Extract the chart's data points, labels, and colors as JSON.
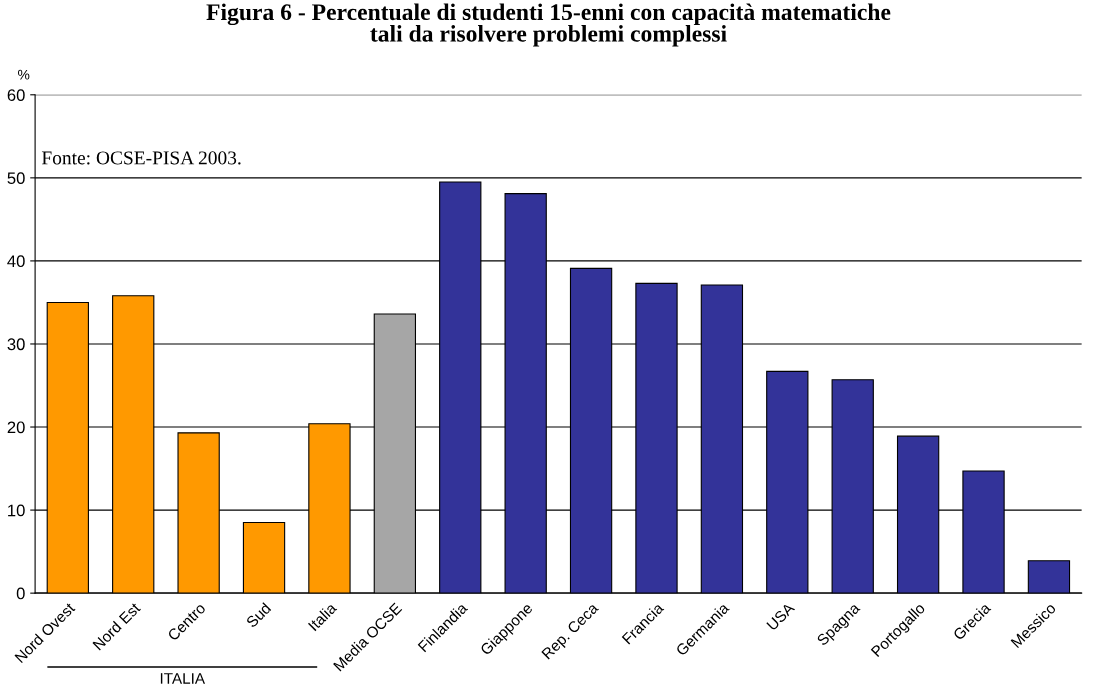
{
  "chart_data": {
    "type": "bar",
    "title": "Figura 6 - Percentuale di studenti 15-enni con capacità matematiche\ntali da risolvere problemi complessi",
    "ylabel": "%",
    "categories": [
      "Nord Ovest",
      "Nord Est",
      "Centro",
      "Sud",
      "Italia",
      "Media OCSE",
      "Finlandia",
      "Giappone",
      "Rep. Ceca",
      "Francia",
      "Germania",
      "USA",
      "Spagna",
      "Portogallo",
      "Grecia",
      "Messico"
    ],
    "values": [
      35.0,
      35.8,
      19.3,
      8.5,
      20.4,
      33.6,
      49.5,
      48.1,
      39.1,
      37.3,
      37.1,
      26.7,
      25.7,
      18.9,
      14.7,
      3.9
    ],
    "colors": [
      "#ff9900",
      "#ff9900",
      "#ff9900",
      "#ff9900",
      "#ff9900",
      "#a6a6a6",
      "#333399",
      "#333399",
      "#333399",
      "#333399",
      "#333399",
      "#333399",
      "#333399",
      "#333399",
      "#333399",
      "#333399"
    ],
    "ylim": [
      0,
      60
    ],
    "yticks": [
      0,
      10,
      20,
      30,
      40,
      50,
      60
    ],
    "grid": "y",
    "annotations": [
      "Fonte: OCSE-PISA 2003.",
      "ITALIA"
    ]
  }
}
